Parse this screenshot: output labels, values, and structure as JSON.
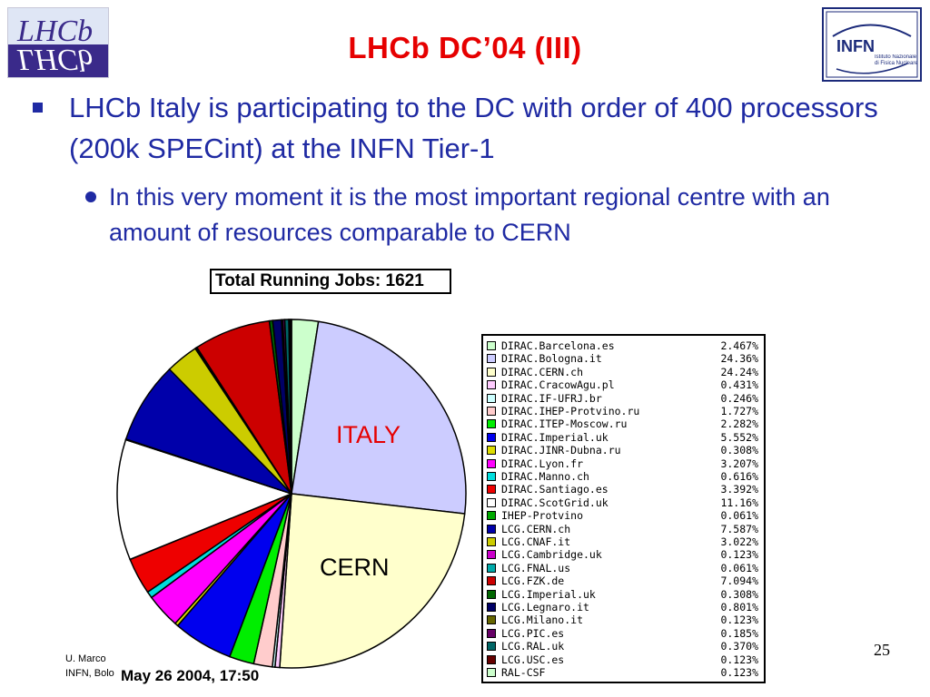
{
  "slide": {
    "title": "LHCb DC’04 (III)",
    "bullet1": "LHCb Italy is participating to the DC with order of 400 processors (200k SPECint) at the INFN Tier-1",
    "bullet2": "In this very moment it is the most important regional centre with an amount of resources comparable to CERN",
    "label_italy": "ITALY",
    "label_cern": "CERN",
    "timestamp": "May 26 2004, 17:50",
    "footer_author_line1": "U. Marco",
    "footer_author_line2": "INFN, Bolo",
    "page_number": "25",
    "logo_lhcb_text": "LHCb",
    "logo_infn_text": "INFN",
    "logo_infn_subtext": "Istituto Nazionale di Fisica Nucleare"
  },
  "chart_data": {
    "type": "pie",
    "title": "Total Running Jobs: 1621",
    "legend_placement": "right",
    "slices": [
      {
        "label": "DIRAC.Barcelona.es",
        "value": 2.467,
        "pct": "2.467%",
        "color": "#ccffcc"
      },
      {
        "label": "DIRAC.Bologna.it",
        "value": 24.36,
        "pct": "24.36%",
        "color": "#ccccff"
      },
      {
        "label": "DIRAC.CERN.ch",
        "value": 24.24,
        "pct": "24.24%",
        "color": "#ffffcc"
      },
      {
        "label": "DIRAC.CracowAgu.pl",
        "value": 0.431,
        "pct": "0.431%",
        "color": "#ffccff"
      },
      {
        "label": "DIRAC.IF-UFRJ.br",
        "value": 0.246,
        "pct": "0.246%",
        "color": "#ccffff"
      },
      {
        "label": "DIRAC.IHEP-Protvino.ru",
        "value": 1.727,
        "pct": "1.727%",
        "color": "#ffcccc"
      },
      {
        "label": "DIRAC.ITEP-Moscow.ru",
        "value": 2.282,
        "pct": "2.282%",
        "color": "#00ee00"
      },
      {
        "label": "DIRAC.Imperial.uk",
        "value": 5.552,
        "pct": "5.552%",
        "color": "#0000ee"
      },
      {
        "label": "DIRAC.JINR-Dubna.ru",
        "value": 0.308,
        "pct": "0.308%",
        "color": "#dddd00"
      },
      {
        "label": "DIRAC.Lyon.fr",
        "value": 3.207,
        "pct": "3.207%",
        "color": "#ff00ff"
      },
      {
        "label": "DIRAC.Manno.ch",
        "value": 0.616,
        "pct": "0.616%",
        "color": "#00dddd"
      },
      {
        "label": "DIRAC.Santiago.es",
        "value": 3.392,
        "pct": "3.392%",
        "color": "#ee0000"
      },
      {
        "label": "DIRAC.ScotGrid.uk",
        "value": 11.16,
        "pct": "11.16%",
        "color": "#ffffff"
      },
      {
        "label": "IHEP-Protvino",
        "value": 0.061,
        "pct": "0.061%",
        "color": "#00aa00"
      },
      {
        "label": "LCG.CERN.ch",
        "value": 7.587,
        "pct": "7.587%",
        "color": "#0000aa"
      },
      {
        "label": "LCG.CNAF.it",
        "value": 3.022,
        "pct": "3.022%",
        "color": "#cccc00"
      },
      {
        "label": "LCG.Cambridge.uk",
        "value": 0.123,
        "pct": "0.123%",
        "color": "#cc00cc"
      },
      {
        "label": "LCG.FNAL.us",
        "value": 0.061,
        "pct": "0.061%",
        "color": "#00aaaa"
      },
      {
        "label": "LCG.FZK.de",
        "value": 7.094,
        "pct": "7.094%",
        "color": "#cc0000"
      },
      {
        "label": "LCG.Imperial.uk",
        "value": 0.308,
        "pct": "0.308%",
        "color": "#006600"
      },
      {
        "label": "LCG.Legnaro.it",
        "value": 0.801,
        "pct": "0.801%",
        "color": "#000066"
      },
      {
        "label": "LCG.Milano.it",
        "value": 0.123,
        "pct": "0.123%",
        "color": "#666600"
      },
      {
        "label": "LCG.PIC.es",
        "value": 0.185,
        "pct": "0.185%",
        "color": "#660066"
      },
      {
        "label": "LCG.RAL.uk",
        "value": 0.37,
        "pct": "0.370%",
        "color": "#006666"
      },
      {
        "label": "LCG.USC.es",
        "value": 0.123,
        "pct": "0.123%",
        "color": "#660000"
      },
      {
        "label": "RAL-CSF",
        "value": 0.123,
        "pct": "0.123%",
        "color": "#ccffcc"
      }
    ]
  }
}
